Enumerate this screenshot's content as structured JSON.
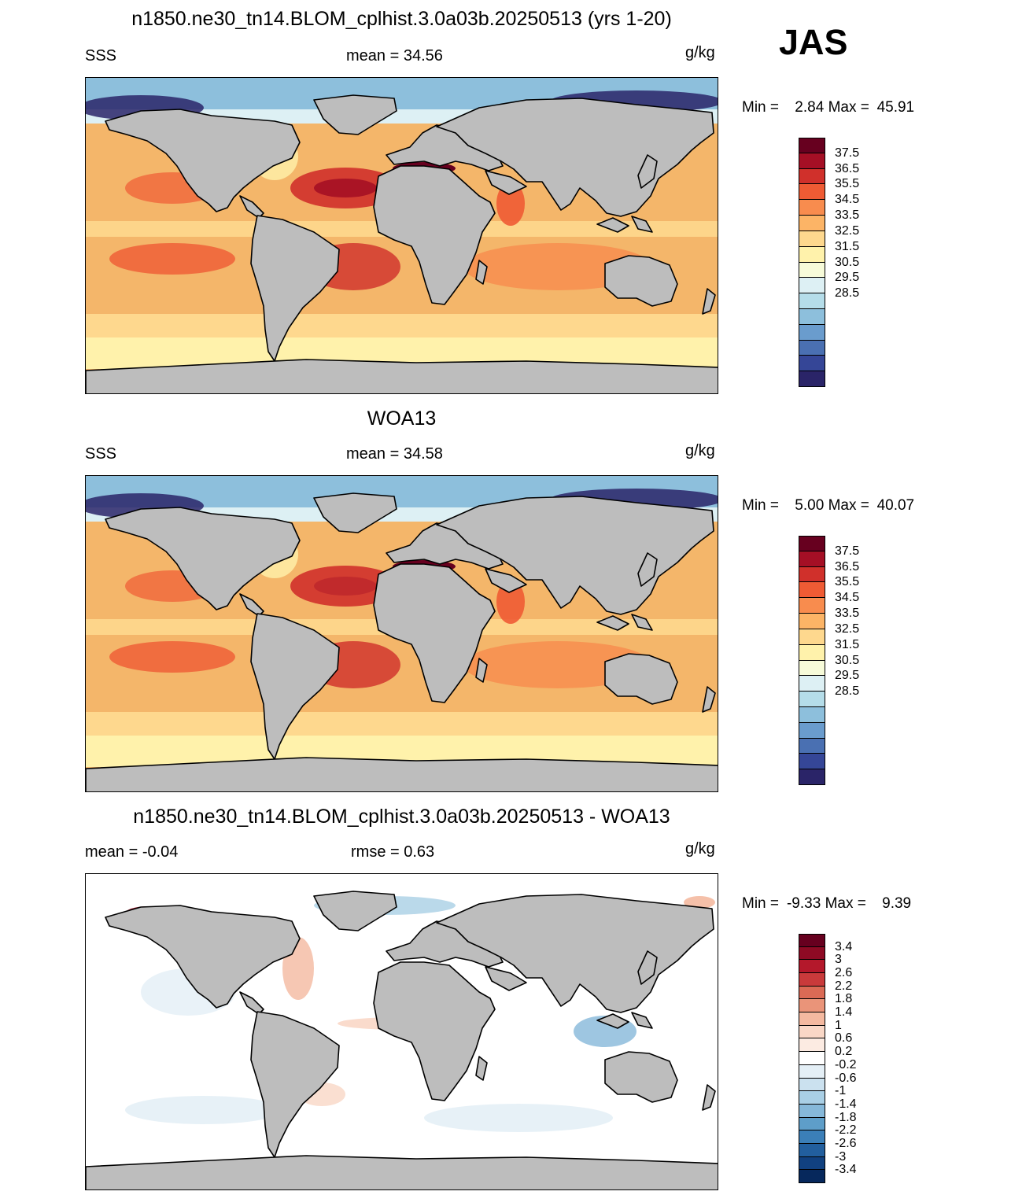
{
  "season": "JAS",
  "units": "g/kg",
  "panels": [
    {
      "title": "n1850.ne30_tn14.BLOM_cplhist.3.0a03b.20250513 (yrs 1-20)",
      "left_label": "SSS",
      "center_label": "mean =  34.56",
      "min_label": "Min =",
      "min_value": "2.84",
      "max_label": "Max =",
      "max_value": "45.91",
      "colorbar_labels": [
        "37.5",
        "36.5",
        "35.5",
        "34.5",
        "33.5",
        "32.5",
        "31.5",
        "30.5",
        "29.5",
        "28.5"
      ],
      "colorbar_colors": [
        "#67001f",
        "#a50f25",
        "#d0302b",
        "#ef5b34",
        "#f88c4e",
        "#fcb466",
        "#fed88e",
        "#fff2ab",
        "#f7fbd9",
        "#ddf0f4",
        "#b5dde9",
        "#8dbfdc",
        "#6a9ccd",
        "#4a70b2",
        "#354697",
        "#2a2468"
      ]
    },
    {
      "title": "WOA13",
      "left_label": "SSS",
      "center_label": "mean =  34.58",
      "min_label": "Min =",
      "min_value": "5.00",
      "max_label": "Max =",
      "max_value": "40.07",
      "colorbar_labels": [
        "37.5",
        "36.5",
        "35.5",
        "34.5",
        "33.5",
        "32.5",
        "31.5",
        "30.5",
        "29.5",
        "28.5"
      ],
      "colorbar_colors": [
        "#67001f",
        "#a50f25",
        "#d0302b",
        "#ef5b34",
        "#f88c4e",
        "#fcb466",
        "#fed88e",
        "#fff2ab",
        "#f7fbd9",
        "#ddf0f4",
        "#b5dde9",
        "#8dbfdc",
        "#6a9ccd",
        "#4a70b2",
        "#354697",
        "#2a2468"
      ]
    },
    {
      "title": "n1850.ne30_tn14.BLOM_cplhist.3.0a03b.20250513 - WOA13",
      "left_label": "mean =  -0.04",
      "center_label": "rmse =   0.63",
      "min_label": "Min =",
      "min_value": "-9.33",
      "max_label": "Max =",
      "max_value": "9.39",
      "colorbar_labels": [
        "3.4",
        "3",
        "2.6",
        "2.2",
        "1.8",
        "1.4",
        "1",
        "0.6",
        "0.2",
        "-0.2",
        "-0.6",
        "-1",
        "-1.4",
        "-1.8",
        "-2.2",
        "-2.6",
        "-3",
        "-3.4"
      ],
      "colorbar_colors": [
        "#67001f",
        "#8e0a24",
        "#b4182b",
        "#c93a3b",
        "#db6a55",
        "#ea9479",
        "#f4b9a0",
        "#f9d7c6",
        "#fcebe2",
        "#ffffff",
        "#e4eff6",
        "#cbe1ef",
        "#a9cfe5",
        "#86b8d9",
        "#5e9ec9",
        "#3b7fb8",
        "#225f9e",
        "#114180",
        "#06285c"
      ]
    }
  ]
}
